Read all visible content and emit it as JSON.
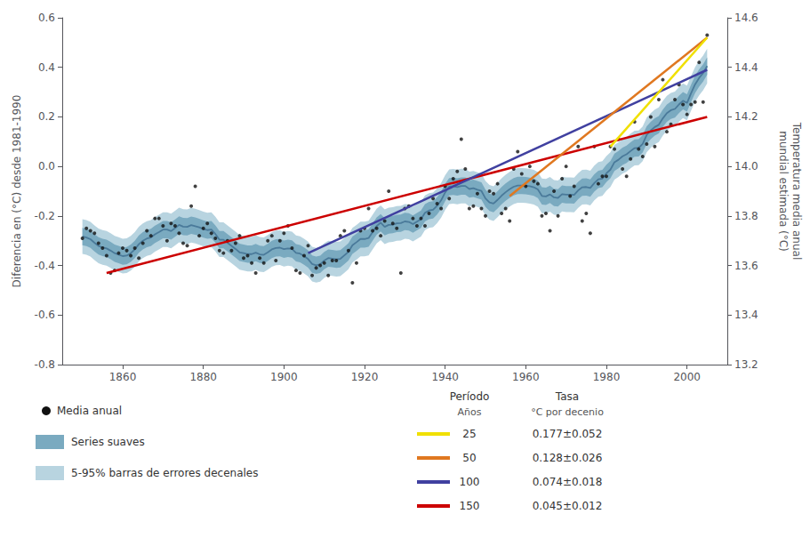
{
  "chart_data": {
    "type": "line",
    "x": [
      1850,
      1851,
      1852,
      1853,
      1854,
      1855,
      1856,
      1857,
      1858,
      1859,
      1860,
      1861,
      1862,
      1863,
      1864,
      1865,
      1866,
      1867,
      1868,
      1869,
      1870,
      1871,
      1872,
      1873,
      1874,
      1875,
      1876,
      1877,
      1878,
      1879,
      1880,
      1881,
      1882,
      1883,
      1884,
      1885,
      1886,
      1887,
      1888,
      1889,
      1890,
      1891,
      1892,
      1893,
      1894,
      1895,
      1896,
      1897,
      1898,
      1899,
      1900,
      1901,
      1902,
      1903,
      1904,
      1905,
      1906,
      1907,
      1908,
      1909,
      1910,
      1911,
      1912,
      1913,
      1914,
      1915,
      1916,
      1917,
      1918,
      1919,
      1920,
      1921,
      1922,
      1923,
      1924,
      1925,
      1926,
      1927,
      1928,
      1929,
      1930,
      1931,
      1932,
      1933,
      1934,
      1935,
      1936,
      1937,
      1938,
      1939,
      1940,
      1941,
      1942,
      1943,
      1944,
      1945,
      1946,
      1947,
      1948,
      1949,
      1950,
      1951,
      1952,
      1953,
      1954,
      1955,
      1956,
      1957,
      1958,
      1959,
      1960,
      1961,
      1962,
      1963,
      1964,
      1965,
      1966,
      1967,
      1968,
      1969,
      1970,
      1971,
      1972,
      1973,
      1974,
      1975,
      1976,
      1977,
      1978,
      1979,
      1980,
      1981,
      1982,
      1983,
      1984,
      1985,
      1986,
      1987,
      1988,
      1989,
      1990,
      1991,
      1992,
      1993,
      1994,
      1995,
      1996,
      1997,
      1998,
      1999,
      2000,
      2001,
      2002,
      2003,
      2004,
      2005
    ],
    "series": [
      {
        "name": "Media anual",
        "type": "scatter",
        "color": "#111111",
        "values": [
          -0.29,
          -0.25,
          -0.26,
          -0.27,
          -0.31,
          -0.33,
          -0.36,
          -0.43,
          -0.42,
          -0.35,
          -0.33,
          -0.34,
          -0.36,
          -0.33,
          -0.37,
          -0.31,
          -0.26,
          -0.28,
          -0.21,
          -0.21,
          -0.24,
          -0.3,
          -0.23,
          -0.24,
          -0.27,
          -0.31,
          -0.32,
          -0.16,
          -0.08,
          -0.28,
          -0.25,
          -0.23,
          -0.27,
          -0.29,
          -0.34,
          -0.35,
          -0.3,
          -0.34,
          -0.31,
          -0.28,
          -0.37,
          -0.36,
          -0.39,
          -0.43,
          -0.37,
          -0.39,
          -0.3,
          -0.28,
          -0.38,
          -0.3,
          -0.27,
          -0.24,
          -0.33,
          -0.42,
          -0.43,
          -0.36,
          -0.32,
          -0.44,
          -0.41,
          -0.4,
          -0.39,
          -0.44,
          -0.38,
          -0.38,
          -0.28,
          -0.26,
          -0.34,
          -0.47,
          -0.39,
          -0.26,
          -0.25,
          -0.17,
          -0.26,
          -0.25,
          -0.28,
          -0.22,
          -0.1,
          -0.23,
          -0.25,
          -0.43,
          -0.17,
          -0.16,
          -0.21,
          -0.24,
          -0.21,
          -0.24,
          -0.19,
          -0.13,
          -0.15,
          -0.17,
          -0.08,
          -0.13,
          -0.05,
          -0.02,
          0.11,
          -0.01,
          -0.17,
          -0.16,
          -0.11,
          -0.17,
          -0.2,
          -0.1,
          -0.11,
          -0.07,
          -0.19,
          -0.17,
          -0.22,
          -0.01,
          0.06,
          -0.03,
          -0.08,
          0.0,
          -0.06,
          -0.07,
          -0.2,
          -0.19,
          -0.26,
          -0.1,
          -0.2,
          -0.05,
          -0.0,
          -0.12,
          -0.08,
          0.08,
          -0.22,
          -0.19,
          -0.27,
          0.08,
          -0.07,
          -0.04,
          -0.04,
          0.08,
          0.07,
          0.11,
          -0.01,
          -0.04,
          0.03,
          0.18,
          0.07,
          0.04,
          0.09,
          0.2,
          0.08,
          0.27,
          0.35,
          0.14,
          0.17,
          0.27,
          0.33,
          0.25,
          0.21,
          0.25,
          0.26,
          0.42,
          0.26,
          0.53
        ]
      },
      {
        "type": "line",
        "color": "#4a7a9a",
        "values": [
          -0.283,
          -0.287,
          -0.294,
          -0.308,
          -0.321,
          -0.327,
          -0.331,
          -0.34,
          -0.35,
          -0.356,
          -0.362,
          -0.36,
          -0.35,
          -0.335,
          -0.314,
          -0.3,
          -0.291,
          -0.287,
          -0.274,
          -0.265,
          -0.255,
          -0.255,
          -0.261,
          -0.249,
          -0.236,
          -0.243,
          -0.244,
          -0.237,
          -0.241,
          -0.246,
          -0.253,
          -0.257,
          -0.255,
          -0.273,
          -0.296,
          -0.296,
          -0.308,
          -0.321,
          -0.333,
          -0.347,
          -0.35,
          -0.354,
          -0.354,
          -0.348,
          -0.355,
          -0.357,
          -0.347,
          -0.335,
          -0.329,
          -0.328,
          -0.334,
          -0.331,
          -0.333,
          -0.349,
          -0.352,
          -0.362,
          -0.374,
          -0.394,
          -0.399,
          -0.395,
          -0.38,
          -0.37,
          -0.372,
          -0.375,
          -0.373,
          -0.359,
          -0.345,
          -0.318,
          -0.306,
          -0.293,
          -0.293,
          -0.289,
          -0.265,
          -0.241,
          -0.227,
          -0.244,
          -0.236,
          -0.235,
          -0.23,
          -0.229,
          -0.222,
          -0.224,
          -0.233,
          -0.223,
          -0.213,
          -0.187,
          -0.178,
          -0.175,
          -0.159,
          -0.137,
          -0.105,
          -0.082,
          -0.08,
          -0.083,
          -0.079,
          -0.079,
          -0.091,
          -0.088,
          -0.094,
          -0.099,
          -0.129,
          -0.145,
          -0.15,
          -0.135,
          -0.118,
          -0.104,
          -0.092,
          -0.082,
          -0.077,
          -0.077,
          -0.078,
          -0.08,
          -0.084,
          -0.093,
          -0.119,
          -0.121,
          -0.113,
          -0.125,
          -0.127,
          -0.112,
          -0.114,
          -0.114,
          -0.115,
          -0.097,
          -0.084,
          -0.083,
          -0.087,
          -0.067,
          -0.052,
          -0.049,
          -0.028,
          -0.013,
          0.017,
          0.027,
          0.041,
          0.049,
          0.062,
          0.074,
          0.075,
          0.091,
          0.127,
          0.145,
          0.159,
          0.168,
          0.194,
          0.215,
          0.227,
          0.232,
          0.25,
          0.265,
          0.256,
          0.295,
          0.331,
          0.357,
          0.377,
          0.405
        ],
        "bands": [
          {
            "name": "Series suaves",
            "color": "#7aaac0",
            "error": 0.035
          },
          {
            "name": "5-95% barras de errores decenales",
            "color": "#b8d4e0",
            "error": 0.07
          }
        ]
      },
      {
        "type": "line",
        "color": "#cc0000",
        "x": [
          1856,
          2005
        ],
        "values": [
          -0.43,
          0.2
        ]
      },
      {
        "type": "line",
        "color": "#4040a0",
        "x": [
          1906,
          2005
        ],
        "values": [
          -0.35,
          0.39
        ]
      },
      {
        "type": "line",
        "color": "#e07820",
        "x": [
          1956,
          2005
        ],
        "values": [
          -0.12,
          0.52
        ]
      },
      {
        "type": "line",
        "color": "#f0e000",
        "x": [
          1981,
          2005
        ],
        "values": [
          0.08,
          0.52
        ]
      }
    ],
    "xlim": [
      1845,
      2010
    ],
    "xticks": [
      1860,
      1880,
      1900,
      1920,
      1940,
      1960,
      1980,
      2000
    ],
    "ylim": [
      -0.8,
      0.6
    ],
    "yticks": [
      -0.8,
      -0.6,
      -0.4,
      -0.2,
      {
        "value": 0,
        "label": "0.0"
      },
      0.2,
      0.4,
      0.6
    ],
    "y2lim": [
      13.2,
      14.6
    ],
    "y2ticks": [
      13.2,
      13.4,
      13.6,
      13.8,
      {
        "value": 14,
        "label": "14.0"
      },
      14.2,
      14.4,
      14.6
    ],
    "ylabel": "Diferencia en (°C) desde 1981-1990",
    "y2label": "Temperatura media anual\nmundial estimada (°C)",
    "grid": false,
    "legend_table": {
      "period_label": "Período",
      "years_label": "Años",
      "rate_label": "Tasa",
      "rate_unit": "°C por decenio",
      "rows": [
        {
          "period": 25,
          "rate": "0.177±0.052",
          "color": "#f0e000"
        },
        {
          "period": 50,
          "rate": "0.128±0.026",
          "color": "#e07820"
        },
        {
          "period": 100,
          "rate": "0.074±0.018",
          "color": "#4040a0"
        },
        {
          "period": 150,
          "rate": "0.045±0.012",
          "color": "#cc0000"
        }
      ]
    }
  }
}
